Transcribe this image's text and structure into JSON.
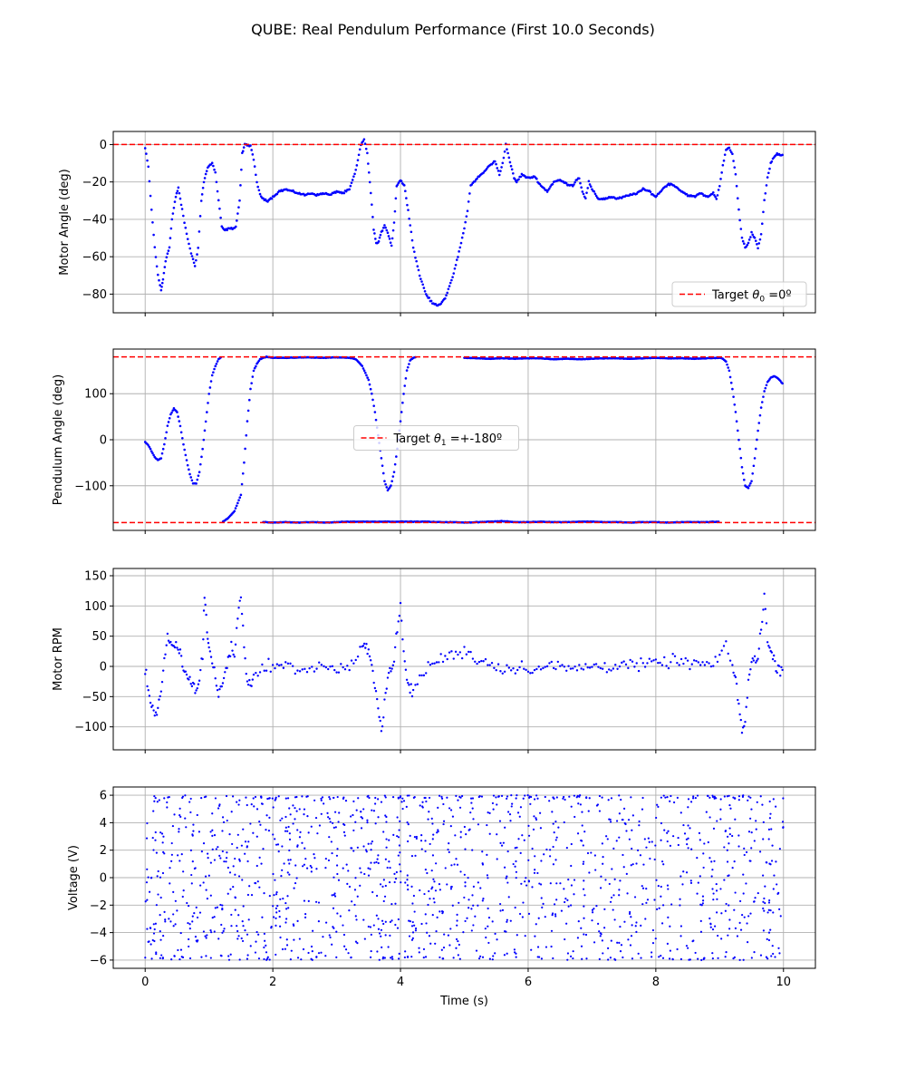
{
  "figure": {
    "title": "QUBE: Real Pendulum Performance (First 10.0 Seconds)",
    "point_color": "#0000ff",
    "target_color": "#ff0000",
    "grid_color": "#b0b0b0"
  },
  "chart_data": [
    {
      "type": "scatter",
      "ylabel": "Motor Angle (deg)",
      "xlabel": "",
      "xlim": [
        -0.5,
        10.5
      ],
      "ylim": [
        -90,
        7
      ],
      "xticks": [
        0,
        2,
        4,
        6,
        8,
        10
      ],
      "yticks": [
        0,
        -20,
        -40,
        -60,
        -80
      ],
      "show_xtick_labels": false,
      "grid": true,
      "target_lines": [
        0
      ],
      "legend": {
        "label_main": "Target ",
        "label_symbol": "θ",
        "label_sub": "0",
        "label_tail": " =0º",
        "placement": "lower right"
      },
      "series": [
        {
          "style": "dense",
          "x": [
            0,
            0.05,
            0.1,
            0.15,
            0.2,
            0.25,
            0.28,
            0.32,
            0.38,
            0.42,
            0.48,
            0.52,
            0.58,
            0.65,
            0.72,
            0.78,
            0.83,
            0.88,
            0.92,
            0.98,
            1.05,
            1.1,
            1.15,
            1.2,
            1.25,
            1.3,
            1.35,
            1.42,
            1.48,
            1.52,
            1.56,
            1.6,
            1.65,
            1.7,
            1.75,
            1.8,
            1.85,
            1.92,
            2.0,
            2.1,
            2.2,
            2.3,
            2.4,
            2.5,
            2.6,
            2.7,
            2.8,
            2.9,
            3.0,
            3.1,
            3.2,
            3.3,
            3.38,
            3.43,
            3.48,
            3.52,
            3.58,
            3.62,
            3.66,
            3.7,
            3.75,
            3.8,
            3.86,
            3.9,
            3.94,
            4.0,
            4.06,
            4.12,
            4.2,
            4.3,
            4.4,
            4.5,
            4.6,
            4.7,
            4.8,
            4.9,
            5.0,
            5.05,
            5.1,
            5.2,
            5.3,
            5.4,
            5.48,
            5.55,
            5.6,
            5.65,
            5.7,
            5.78,
            5.82,
            5.9,
            6.0,
            6.1,
            6.2,
            6.3,
            6.4,
            6.5,
            6.6,
            6.7,
            6.75,
            6.8,
            6.85,
            6.9,
            6.95,
            7.0,
            7.1,
            7.2,
            7.3,
            7.4,
            7.5,
            7.6,
            7.7,
            7.8,
            7.9,
            8.0,
            8.1,
            8.2,
            8.3,
            8.4,
            8.5,
            8.6,
            8.7,
            8.8,
            8.9,
            8.95,
            9.0,
            9.05,
            9.1,
            9.15,
            9.2,
            9.25,
            9.3,
            9.35,
            9.4,
            9.45,
            9.5,
            9.55,
            9.6,
            9.65,
            9.7,
            9.75,
            9.8,
            9.85,
            9.9,
            10.0
          ],
          "y": [
            -2,
            -12,
            -35,
            -55,
            -70,
            -78,
            -72,
            -62,
            -55,
            -40,
            -28,
            -23,
            -35,
            -48,
            -58,
            -65,
            -55,
            -30,
            -20,
            -12,
            -10,
            -15,
            -30,
            -44,
            -46,
            -45,
            -45,
            -44,
            -30,
            -5,
            0,
            0,
            -1,
            -8,
            -20,
            -27,
            -29,
            -30,
            -28,
            -25,
            -24,
            -25,
            -26,
            -27,
            -26,
            -27,
            -26,
            -27,
            -25,
            -26,
            -24,
            -14,
            0,
            3,
            -5,
            -20,
            -45,
            -53,
            -52,
            -47,
            -43,
            -47,
            -54,
            -42,
            -22,
            -19,
            -22,
            -35,
            -55,
            -70,
            -80,
            -85,
            -86,
            -82,
            -73,
            -60,
            -45,
            -35,
            -22,
            -18,
            -15,
            -11,
            -9,
            -16,
            -10,
            0,
            -7,
            -18,
            -20,
            -16,
            -18,
            -17,
            -22,
            -25,
            -20,
            -19,
            -21,
            -22,
            -19,
            -18,
            -25,
            -29,
            -20,
            -24,
            -29,
            -29,
            -28,
            -29,
            -28,
            -27,
            -26,
            -24,
            -25,
            -28,
            -24,
            -21,
            -22,
            -25,
            -27,
            -28,
            -26,
            -28,
            -26,
            -29,
            -22,
            -11,
            -3,
            -2,
            -5,
            -16,
            -35,
            -50,
            -55,
            -53,
            -47,
            -50,
            -55,
            -48,
            -30,
            -18,
            -10,
            -7,
            -5,
            -6
          ]
        }
      ]
    },
    {
      "type": "scatter",
      "ylabel": "Pendulum Angle (deg)",
      "xlabel": "",
      "xlim": [
        -0.5,
        10.5
      ],
      "ylim": [
        -197,
        197
      ],
      "xticks": [
        0,
        2,
        4,
        6,
        8,
        10
      ],
      "yticks": [
        100,
        0,
        -100
      ],
      "show_xtick_labels": false,
      "grid": true,
      "target_lines": [
        180,
        -180
      ],
      "legend": {
        "label_main": "Target ",
        "label_symbol": "θ",
        "label_sub": "1",
        "label_tail": " =+-180º",
        "placement": "center"
      },
      "series": [
        {
          "style": "dense",
          "x": [
            0,
            0.05,
            0.1,
            0.15,
            0.2,
            0.25,
            0.3,
            0.35,
            0.4,
            0.45,
            0.5,
            0.55,
            0.6,
            0.65,
            0.7,
            0.75,
            0.8,
            0.85,
            0.9,
            0.95,
            1.0,
            1.05,
            1.1,
            1.15,
            1.2
          ],
          "y": [
            -5,
            -12,
            -25,
            -38,
            -44,
            -40,
            -10,
            30,
            55,
            68,
            60,
            30,
            -10,
            -45,
            -75,
            -95,
            -95,
            -70,
            -20,
            40,
            100,
            140,
            160,
            175,
            180
          ]
        },
        {
          "style": "dense",
          "x": [
            1.22,
            1.3,
            1.4,
            1.5,
            1.55,
            1.6,
            1.65,
            1.7,
            1.75,
            1.8,
            1.85,
            1.9,
            2.0,
            2.2,
            2.5,
            2.8,
            3.0,
            3.2,
            3.3,
            3.4,
            3.5,
            3.55,
            3.6,
            3.65,
            3.7,
            3.75,
            3.8,
            3.85,
            3.9,
            3.95,
            4.0,
            4.05,
            4.1,
            4.15,
            4.2,
            4.25
          ],
          "y": [
            -178,
            -170,
            -155,
            -120,
            -50,
            40,
            110,
            150,
            165,
            175,
            178,
            180,
            178,
            178,
            179,
            178,
            179,
            178,
            175,
            160,
            130,
            100,
            60,
            10,
            -40,
            -90,
            -110,
            -100,
            -70,
            -20,
            40,
            100,
            150,
            172,
            178,
            180
          ]
        },
        {
          "style": "dense",
          "x": [
            5.0,
            5.2,
            5.4,
            5.6,
            5.8,
            6.0,
            6.2,
            6.4,
            6.6,
            6.8,
            7.0,
            7.2,
            7.4,
            7.6,
            7.8,
            8.0,
            8.2,
            8.4,
            8.6,
            8.8,
            9.0,
            9.05,
            9.1,
            9.15,
            9.2,
            9.25,
            9.3,
            9.35,
            9.4,
            9.45,
            9.5,
            9.55,
            9.6,
            9.65,
            9.7,
            9.75,
            9.8,
            9.85,
            9.9,
            9.95,
            10.0
          ],
          "y": [
            178,
            177,
            176,
            177,
            176,
            177,
            177,
            175,
            176,
            175,
            176,
            177,
            177,
            176,
            177,
            178,
            177,
            177,
            176,
            177,
            178,
            176,
            170,
            150,
            110,
            60,
            0,
            -60,
            -100,
            -105,
            -90,
            -40,
            20,
            70,
            105,
            125,
            135,
            138,
            135,
            128,
            120
          ]
        },
        {
          "style": "dense",
          "x": [
            1.85,
            2.0,
            2.2,
            2.4,
            2.6,
            2.8,
            3.0,
            3.2,
            4.25,
            4.4,
            4.6,
            4.8,
            5.0,
            5.6,
            5.8,
            6.0,
            6.2,
            6.4,
            6.6,
            6.8,
            7.0,
            7.2,
            7.4,
            7.6,
            7.8,
            8.0,
            8.2,
            8.4,
            8.6,
            8.8,
            9.0
          ],
          "y": [
            -179,
            -180,
            -179,
            -180,
            -179,
            -180,
            -179,
            -178,
            -178,
            -178,
            -179,
            -179,
            -180,
            -177,
            -179,
            -179,
            -178,
            -179,
            -179,
            -178,
            -178,
            -179,
            -179,
            -180,
            -179,
            -179,
            -180,
            -179,
            -179,
            -179,
            -178
          ]
        }
      ]
    },
    {
      "type": "scatter",
      "ylabel": "Motor RPM",
      "xlabel": "",
      "xlim": [
        -0.5,
        10.5
      ],
      "ylim": [
        -138,
        162
      ],
      "xticks": [
        0,
        2,
        4,
        6,
        8,
        10
      ],
      "yticks": [
        150,
        100,
        50,
        0,
        -50,
        -100
      ],
      "show_xtick_labels": false,
      "grid": true,
      "target_lines": [],
      "legend": null,
      "series": [
        {
          "style": "noisy",
          "noise_amp": 12,
          "x": [
            0,
            0.05,
            0.1,
            0.15,
            0.2,
            0.25,
            0.3,
            0.35,
            0.4,
            0.45,
            0.5,
            0.55,
            0.6,
            0.65,
            0.7,
            0.75,
            0.8,
            0.85,
            0.9,
            0.93,
            0.97,
            1.0,
            1.05,
            1.1,
            1.15,
            1.2,
            1.25,
            1.3,
            1.35,
            1.4,
            1.45,
            1.5,
            1.55,
            1.6,
            1.65,
            1.7,
            1.8,
            1.9,
            2.0,
            2.2,
            2.5,
            2.8,
            3.0,
            3.2,
            3.3,
            3.4,
            3.45,
            3.5,
            3.55,
            3.6,
            3.65,
            3.7,
            3.75,
            3.8,
            3.85,
            3.9,
            3.95,
            4.0,
            4.05,
            4.1,
            4.15,
            4.2,
            4.3,
            4.4,
            4.5,
            4.6,
            4.7,
            4.8,
            4.9,
            5.0,
            5.1,
            5.2,
            5.3,
            5.5,
            5.7,
            5.9,
            6.1,
            6.3,
            6.5,
            6.7,
            6.9,
            7.1,
            7.3,
            7.5,
            7.7,
            7.9,
            8.1,
            8.3,
            8.5,
            8.7,
            8.9,
            9.0,
            9.1,
            9.2,
            9.25,
            9.3,
            9.35,
            9.4,
            9.45,
            9.5,
            9.55,
            9.6,
            9.65,
            9.7,
            9.75,
            9.8,
            9.85,
            9.9,
            9.95,
            10.0
          ],
          "y": [
            -5,
            -40,
            -60,
            -80,
            -70,
            -40,
            10,
            45,
            35,
            30,
            30,
            25,
            -10,
            -15,
            -20,
            -30,
            -45,
            -20,
            20,
            120,
            60,
            30,
            10,
            -20,
            -50,
            -30,
            -10,
            10,
            30,
            20,
            80,
            120,
            30,
            -20,
            -30,
            -20,
            -10,
            5,
            0,
            0,
            -5,
            0,
            -5,
            0,
            10,
            30,
            35,
            20,
            0,
            -30,
            -60,
            -110,
            -60,
            -20,
            0,
            10,
            60,
            100,
            20,
            -20,
            -40,
            -40,
            -20,
            -5,
            5,
            10,
            15,
            20,
            20,
            25,
            25,
            5,
            10,
            0,
            -5,
            0,
            -5,
            0,
            0,
            -5,
            0,
            0,
            0,
            5,
            0,
            5,
            5,
            10,
            5,
            5,
            0,
            20,
            30,
            0,
            -20,
            -60,
            -110,
            -90,
            -30,
            10,
            10,
            20,
            60,
            120,
            40,
            25,
            10,
            0,
            -5,
            -5
          ]
        }
      ]
    },
    {
      "type": "scatter",
      "ylabel": "Voltage (V)",
      "xlabel": "Time (s)",
      "xlim": [
        -0.5,
        10.5
      ],
      "ylim": [
        -6.6,
        6.6
      ],
      "xticks": [
        0,
        2,
        4,
        6,
        8,
        10
      ],
      "yticks": [
        6,
        4,
        2,
        0,
        -2,
        -4,
        -6
      ],
      "show_xtick_labels": true,
      "grid": true,
      "target_lines": [],
      "legend": null,
      "series": [
        {
          "style": "random",
          "count": 1500,
          "x_range": [
            0,
            10
          ],
          "y_range": [
            -6,
            6
          ],
          "clip_fraction": 0.12
        }
      ]
    }
  ]
}
